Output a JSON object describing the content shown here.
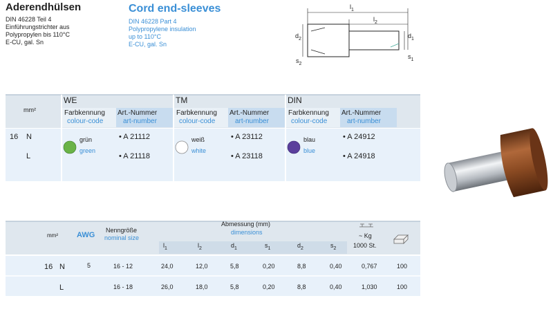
{
  "header": {
    "de": {
      "title": "Aderendhülsen",
      "lines": [
        "DIN 46228 Teil 4",
        "Einführungstrichter aus",
        "Polypropylen bis 110°C",
        "E-CU, gal. Sn"
      ]
    },
    "en": {
      "title": "Cord end-sleeves",
      "lines": [
        "DIN 46228 Part 4",
        "Polypropylene insulation",
        "up to 110°C",
        "E-CU, gal. Sn"
      ]
    }
  },
  "drawing": {
    "labels": [
      {
        "main": "l",
        "sub": "1"
      },
      {
        "main": "l",
        "sub": "2"
      },
      {
        "main": "d",
        "sub": "2"
      },
      {
        "main": "d",
        "sub": "1"
      },
      {
        "main": "s",
        "sub": "2"
      },
      {
        "main": "s",
        "sub": "1"
      }
    ]
  },
  "table1": {
    "unit": "mm²",
    "size": "16",
    "variants": [
      "N",
      "L"
    ],
    "groups": [
      {
        "name": "WE",
        "col_de": "Farbkennung",
        "col_en": "colour-code",
        "art_de": "Art.-Nummer",
        "art_en": "art-number",
        "color_de": "grün",
        "color_en": "green",
        "articles": [
          "• A 21112",
          "• A 21118"
        ]
      },
      {
        "name": "TM",
        "col_de": "Farbkennung",
        "col_en": "colour-code",
        "art_de": "Art.-Nummer",
        "art_en": "art-number",
        "color_de": "weiß",
        "color_en": "white",
        "articles": [
          "• A 23112",
          "• A 23118"
        ]
      },
      {
        "name": "DIN",
        "col_de": "Farbkennung",
        "col_en": "colour-code",
        "art_de": "Art.-Nummer",
        "art_en": "art-number",
        "color_de": "blau",
        "color_en": "blue",
        "articles": [
          "• A 24912",
          "• A 24918"
        ]
      }
    ]
  },
  "table2": {
    "unit": "mm²",
    "awg": "AWG",
    "nominal_de": "Nenngröße",
    "nominal_en": "nominal size",
    "dims_de": "Abmessung (mm)",
    "dims_en": "dimensions",
    "dims": [
      {
        "main": "l",
        "sub": "1"
      },
      {
        "main": "l",
        "sub": "2"
      },
      {
        "main": "d",
        "sub": "1"
      },
      {
        "main": "s",
        "sub": "1"
      },
      {
        "main": "d",
        "sub": "2"
      },
      {
        "main": "s",
        "sub": "2"
      }
    ],
    "weight": "~ Kg",
    "weight_unit": "1000 St.",
    "rows": [
      {
        "size": "16",
        "variant": "N",
        "awg": "5",
        "nominal": "16 - 12",
        "values": [
          "24,0",
          "12,0",
          "5,8",
          "0,20",
          "8,8",
          "0,40",
          "0,767",
          "100"
        ]
      },
      {
        "variant": "L",
        "nominal": "16 - 18",
        "values": [
          "26,0",
          "18,0",
          "5,8",
          "0,20",
          "8,8",
          "0,40",
          "1,030",
          "100"
        ]
      }
    ]
  }
}
